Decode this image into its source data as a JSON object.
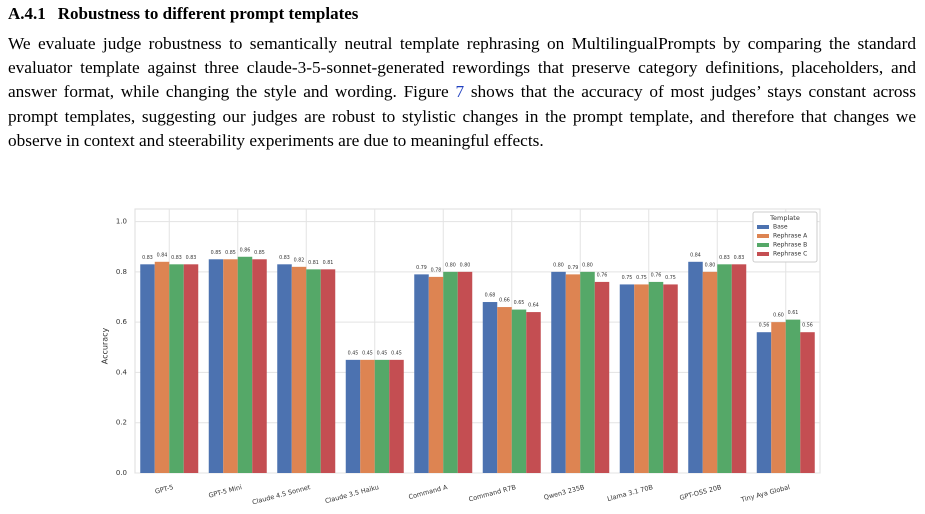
{
  "header": {
    "number": "A.4.1",
    "title": "Robustness to different prompt templates"
  },
  "paragraph": {
    "before": "We evaluate judge robustness to semantically neutral template rephrasing on MultilingualPrompts by comparing the standard evaluator template against three claude-3-5-sonnet-generated rewordings that preserve category definitions, placeholders, and answer format, while changing the style and wording. Figure ",
    "link": "7",
    "after": " shows that the accuracy of most judges’ stays constant across prompt templates, suggesting our judges are robust to stylistic changes in the prompt template, and therefore that changes we observe in context and steerability experiments are due to meaningful effects."
  },
  "chart_data": {
    "type": "bar",
    "ylabel": "Accuracy",
    "legend_title": "Template",
    "legend_position": "upper right",
    "grid": true,
    "categories": [
      "GPT-5",
      "GPT-5 Mini",
      "Claude 4.5 Sonnet",
      "Claude 3.5 Haiku",
      "Command A",
      "Command R7B",
      "Qwen3 235B",
      "Llama 3.1 70B",
      "GPT-OSS 20B",
      "Tiny Aya Global"
    ],
    "ylim": [
      0,
      1.05
    ],
    "yticks": [
      {
        "value": 0,
        "label": "0.0"
      },
      {
        "value": 0.2,
        "label": "0.2"
      },
      {
        "value": 0.4,
        "label": "0.4"
      },
      {
        "value": 0.6,
        "label": "0.6"
      },
      {
        "value": 0.8,
        "label": "0.8"
      },
      {
        "value": 1,
        "label": "1.0"
      }
    ],
    "series": [
      {
        "name": "Base",
        "color": "#4c72b0",
        "values": [
          0.83,
          0.85,
          0.83,
          0.45,
          0.79,
          0.68,
          0.8,
          0.75,
          0.84,
          0.56
        ],
        "value_labels": [
          "0.83",
          "0.85",
          "0.83",
          "0.45",
          "0.79",
          "0.68",
          "0.80",
          "0.75",
          "0.84",
          "0.56"
        ]
      },
      {
        "name": "Rephrase A",
        "color": "#dd8452",
        "values": [
          0.84,
          0.85,
          0.82,
          0.45,
          0.78,
          0.66,
          0.79,
          0.75,
          0.8,
          0.6
        ],
        "value_labels": [
          "0.84",
          "0.85",
          "0.82",
          "0.45",
          "0.78",
          "0.66",
          "0.79",
          "0.75",
          "0.80",
          "0.60"
        ]
      },
      {
        "name": "Rephrase B",
        "color": "#55a868",
        "values": [
          0.83,
          0.86,
          0.81,
          0.45,
          0.8,
          0.65,
          0.8,
          0.76,
          0.83,
          0.61
        ],
        "value_labels": [
          "0.83",
          "0.86",
          "0.81",
          "0.45",
          "0.80",
          "0.65",
          "0.80",
          "0.76",
          "0.83",
          "0.61"
        ]
      },
      {
        "name": "Rephrase C",
        "color": "#c44e52",
        "values": [
          0.83,
          0.85,
          0.81,
          0.45,
          0.8,
          0.64,
          0.76,
          0.75,
          0.83,
          0.56
        ],
        "value_labels": [
          "0.83",
          "0.85",
          "0.81",
          "0.45",
          "0.80",
          "0.64",
          "0.76",
          "0.75",
          "0.83",
          "0.56"
        ]
      }
    ]
  }
}
